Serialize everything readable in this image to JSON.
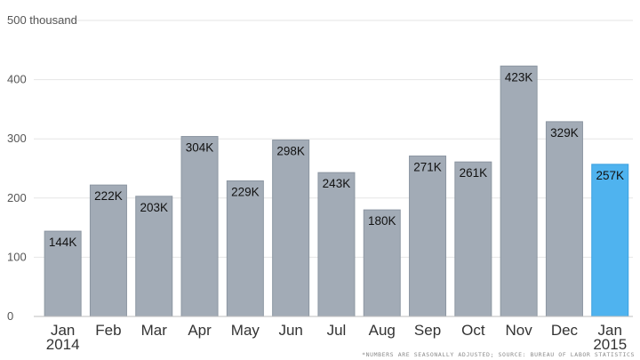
{
  "chart_data": {
    "type": "bar",
    "title": "",
    "xlabel": "",
    "ylabel": "",
    "ylim": [
      0,
      500
    ],
    "y_ticks": [
      {
        "value": 0,
        "label": "0"
      },
      {
        "value": 100,
        "label": "100"
      },
      {
        "value": 200,
        "label": "200"
      },
      {
        "value": 300,
        "label": "300"
      },
      {
        "value": 400,
        "label": "400"
      },
      {
        "value": 500,
        "label": "500 thousand"
      }
    ],
    "grid": true,
    "categories": [
      [
        "Jan",
        "2014"
      ],
      [
        "Feb"
      ],
      [
        "Mar"
      ],
      [
        "Apr"
      ],
      [
        "May"
      ],
      [
        "Jun"
      ],
      [
        "Jul"
      ],
      [
        "Aug"
      ],
      [
        "Sep"
      ],
      [
        "Oct"
      ],
      [
        "Nov"
      ],
      [
        "Dec"
      ],
      [
        "Jan",
        "2015"
      ]
    ],
    "values": [
      144,
      222,
      203,
      304,
      229,
      298,
      243,
      180,
      271,
      261,
      423,
      329,
      257
    ],
    "data_labels": [
      "144K",
      "222K",
      "203K",
      "304K",
      "229K",
      "298K",
      "243K",
      "180K",
      "271K",
      "261K",
      "423K",
      "329K",
      "257K"
    ],
    "highlight_index": 12,
    "colors": {
      "bar": "#a2abb6",
      "bar_stroke": "#8c96a2",
      "highlight": "#4fb3ef",
      "highlight_stroke": "#3aa0e0",
      "grid": "#e6e6e6",
      "axis": "#bdbdbd"
    },
    "footnote": "*NUMBERS ARE SEASONALLY ADJUSTED; SOURCE: BUREAU OF LABOR STATISTICS"
  }
}
